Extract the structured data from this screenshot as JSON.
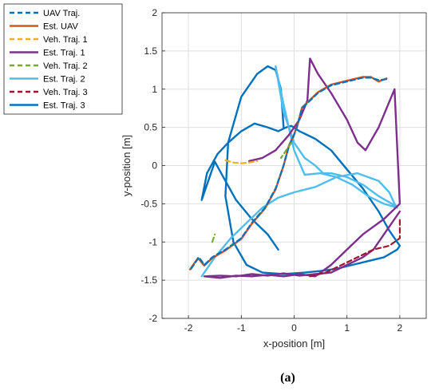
{
  "chart_data": {
    "type": "line",
    "xlabel": "x-position [m]",
    "ylabel": "y-position [m]",
    "xlim": [
      -2.5,
      2.5
    ],
    "ylim": [
      -2,
      2
    ],
    "xticks": [
      -2,
      -1,
      0,
      1,
      2
    ],
    "yticks": [
      -2,
      -1.5,
      -1,
      -0.5,
      0,
      0.5,
      1,
      1.5,
      2
    ],
    "grid": true,
    "legend_position": "outside-top-left",
    "caption": "(a)",
    "series": [
      {
        "name": "UAV Traj.",
        "style": "dashed",
        "color": "#0072BD",
        "x": [
          -1.95,
          -1.8,
          -1.7,
          -1.55,
          -1.3,
          -1.0,
          -0.8,
          -0.55,
          -0.35,
          -0.2,
          -0.1,
          0.0,
          0.05,
          0.15,
          0.3,
          0.45,
          0.7,
          1.0,
          1.3,
          1.45,
          1.6,
          1.75
        ],
        "y": [
          -1.35,
          -1.2,
          -1.3,
          -1.2,
          -1.1,
          -0.95,
          -0.75,
          -0.55,
          -0.3,
          0.0,
          0.25,
          0.4,
          0.5,
          0.75,
          0.85,
          0.95,
          1.05,
          1.1,
          1.15,
          1.15,
          1.12,
          1.13
        ]
      },
      {
        "name": "Est. UAV",
        "style": "solid",
        "color": "#D95319",
        "x": [
          -1.97,
          -1.82,
          -1.7,
          -1.55,
          -1.3,
          -1.0,
          -0.8,
          -0.55,
          -0.35,
          -0.2,
          -0.1,
          0.0,
          0.06,
          0.15,
          0.3,
          0.45,
          0.7,
          1.0,
          1.3,
          1.45,
          1.6,
          1.75
        ],
        "y": [
          -1.36,
          -1.21,
          -1.31,
          -1.21,
          -1.11,
          -0.96,
          -0.76,
          -0.56,
          -0.31,
          0.0,
          0.26,
          0.41,
          0.52,
          0.76,
          0.86,
          0.96,
          1.06,
          1.11,
          1.16,
          1.16,
          1.1,
          1.14
        ]
      },
      {
        "name": "Veh. Traj. 1",
        "style": "dashed",
        "color": "#EDB120",
        "x": [
          -1.3,
          -1.15,
          -1.0,
          -0.85,
          -0.7
        ],
        "y": [
          0.07,
          0.04,
          0.03,
          0.04,
          0.06
        ]
      },
      {
        "name": "Est. Traj. 1",
        "style": "solid",
        "color": "#7E2F8E",
        "x": [
          -0.85,
          -0.6,
          -0.35,
          -0.1,
          0.1,
          0.25,
          0.3,
          0.45,
          0.7,
          1.0,
          1.2,
          1.35,
          1.6,
          1.9,
          2.0,
          1.7,
          1.3,
          1.0,
          0.7,
          0.4,
          0.1,
          -0.2,
          -0.5,
          -0.8,
          -1.1,
          -1.4,
          -1.7,
          -1.4,
          -1.1,
          -0.8,
          -0.5,
          -0.2,
          0.1,
          0.4,
          0.7,
          1.0,
          1.3,
          1.5,
          1.6,
          1.7,
          1.8,
          1.9,
          2.0
        ],
        "y": [
          0.06,
          0.1,
          0.2,
          0.4,
          0.6,
          0.85,
          1.4,
          1.2,
          0.95,
          0.6,
          0.3,
          0.2,
          0.5,
          1.0,
          -0.5,
          -0.7,
          -0.9,
          -1.1,
          -1.3,
          -1.45,
          -1.42,
          -1.45,
          -1.43,
          -1.45,
          -1.44,
          -1.47,
          -1.45,
          -1.44,
          -1.45,
          -1.42,
          -1.44,
          -1.41,
          -1.44,
          -1.42,
          -1.4,
          -1.3,
          -1.2,
          -1.1,
          -1.0,
          -0.9,
          -0.8,
          -0.7,
          -0.6
        ]
      },
      {
        "name": "Veh. Traj. 2",
        "style": "dashed",
        "color": "#77AC30",
        "x": [
          -0.05,
          -0.15,
          -0.25,
          -1.55,
          -1.5
        ],
        "y": [
          0.3,
          0.2,
          0.1,
          -1.0,
          -0.9
        ],
        "segments": [
          [
            0,
            3
          ],
          [
            3,
            5
          ]
        ]
      },
      {
        "name": "Est. Traj. 2",
        "style": "solid",
        "color": "#4DBEEE",
        "x": [
          -1.75,
          -1.5,
          -1.2,
          -0.9,
          -0.6,
          -0.3,
          0.0,
          0.4,
          0.8,
          1.2,
          1.6,
          1.8,
          1.9,
          1.95,
          1.7,
          1.4,
          1.1,
          0.8,
          0.5,
          0.2,
          0.0,
          -0.2,
          -0.35,
          -0.2,
          0.0,
          0.2,
          0.4,
          0.55,
          0.7,
          1.0,
          1.3,
          1.6,
          1.9,
          1.95
        ],
        "y": [
          -1.45,
          -1.2,
          -0.95,
          -0.75,
          -0.55,
          -0.42,
          -0.35,
          -0.28,
          -0.15,
          -0.1,
          -0.2,
          -0.35,
          -0.5,
          -0.55,
          -0.5,
          -0.4,
          -0.25,
          -0.15,
          -0.1,
          -0.12,
          0.2,
          0.8,
          1.3,
          0.7,
          0.3,
          0.1,
          0.0,
          -0.1,
          -0.1,
          -0.15,
          -0.25,
          -0.4,
          -0.52,
          -0.55
        ]
      },
      {
        "name": "Veh. Traj. 3",
        "style": "dashed",
        "color": "#A2142F",
        "x": [
          0.3,
          0.6,
          0.9,
          1.2,
          1.5,
          1.8,
          2.0,
          2.0
        ],
        "y": [
          -1.45,
          -1.4,
          -1.3,
          -1.2,
          -1.1,
          -1.05,
          -0.95,
          -0.7
        ],
        "segments": [
          [
            0,
            8
          ]
        ]
      },
      {
        "name": "Est. Traj. 3",
        "style": "solid",
        "color": "#0072BD",
        "x": [
          -0.3,
          -0.5,
          -0.8,
          -1.1,
          -1.3,
          -1.5,
          -1.75,
          -1.65,
          -1.45,
          -1.25,
          -1.0,
          -0.75,
          -0.5,
          -0.3,
          -0.15,
          -0.05,
          0.1,
          0.4,
          0.7,
          1.0,
          1.3,
          1.6,
          1.8,
          1.95,
          2.0,
          1.95,
          1.7,
          1.4,
          1.1,
          0.8,
          0.5,
          0.2,
          -0.2,
          -0.6,
          -0.9,
          -1.15,
          -1.3,
          -1.25,
          -1.0,
          -0.7,
          -0.5,
          -0.35,
          -0.25,
          -0.2
        ],
        "y": [
          -1.1,
          -0.9,
          -0.7,
          -0.45,
          -0.2,
          0.05,
          -0.45,
          -0.1,
          0.15,
          0.3,
          0.45,
          0.55,
          0.5,
          0.45,
          0.5,
          0.52,
          0.45,
          0.35,
          0.2,
          -0.05,
          -0.3,
          -0.6,
          -0.85,
          -1.0,
          -1.05,
          -1.1,
          -1.2,
          -1.25,
          -1.3,
          -1.35,
          -1.38,
          -1.4,
          -1.42,
          -1.4,
          -1.3,
          -1.0,
          -0.4,
          0.3,
          0.9,
          1.2,
          1.3,
          1.25,
          1.0,
          0.5
        ]
      }
    ]
  }
}
